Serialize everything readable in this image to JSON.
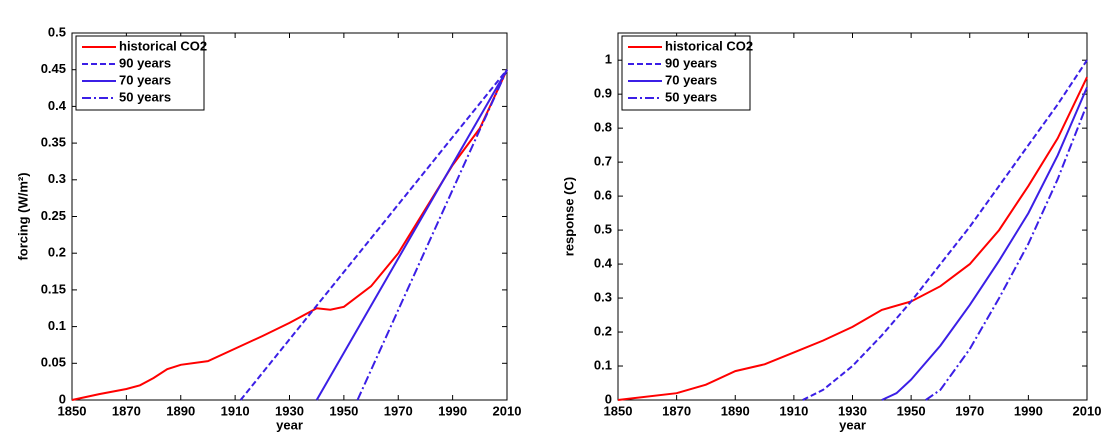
{
  "chart_data": [
    {
      "type": "line",
      "xlabel": "year",
      "ylabel": "forcing (W/m²)",
      "xlim": [
        1850,
        2010
      ],
      "ylim": [
        0,
        0.5
      ],
      "xticks": [
        1850,
        1870,
        1890,
        1910,
        1930,
        1950,
        1970,
        1990,
        2010
      ],
      "yticks": [
        0,
        0.05,
        0.1,
        0.15,
        0.2,
        0.25,
        0.3,
        0.35,
        0.4,
        0.45,
        0.5
      ],
      "legend": "upper left",
      "series": [
        {
          "name": "historical CO2",
          "color": "#ff0000",
          "linestyle": "solid",
          "x": [
            1850,
            1860,
            1870,
            1875,
            1880,
            1885,
            1890,
            1900,
            1910,
            1920,
            1930,
            1940,
            1945,
            1950,
            1960,
            1970,
            1980,
            1990,
            2000,
            2010
          ],
          "values": [
            0,
            0.008,
            0.015,
            0.02,
            0.03,
            0.042,
            0.048,
            0.053,
            0.07,
            0.087,
            0.105,
            0.125,
            0.123,
            0.127,
            0.155,
            0.2,
            0.26,
            0.32,
            0.37,
            0.45
          ]
        },
        {
          "name": "90 years",
          "color": "#3b1fe6",
          "linestyle": "dashed",
          "x": [
            1912,
            2010
          ],
          "values": [
            0,
            0.45
          ]
        },
        {
          "name": "70 years",
          "color": "#3b1fe6",
          "linestyle": "solid",
          "x": [
            1940,
            2010
          ],
          "values": [
            0,
            0.45
          ]
        },
        {
          "name": "50 years",
          "color": "#3b1fe6",
          "linestyle": "dashdot",
          "x": [
            1955,
            2010
          ],
          "values": [
            0,
            0.45
          ]
        }
      ]
    },
    {
      "type": "line",
      "xlabel": "year",
      "ylabel": "response (C)",
      "xlim": [
        1850,
        2010
      ],
      "ylim": [
        0,
        1.08
      ],
      "xticks": [
        1850,
        1870,
        1890,
        1910,
        1930,
        1950,
        1970,
        1990,
        2010
      ],
      "yticks": [
        0,
        0.1,
        0.2,
        0.3,
        0.4,
        0.5,
        0.6,
        0.7,
        0.8,
        0.9,
        1
      ],
      "legend": "upper left",
      "series": [
        {
          "name": "historical CO2",
          "color": "#ff0000",
          "linestyle": "solid",
          "x": [
            1850,
            1870,
            1880,
            1890,
            1900,
            1910,
            1920,
            1930,
            1940,
            1950,
            1960,
            1970,
            1980,
            1990,
            2000,
            2010
          ],
          "values": [
            0,
            0.02,
            0.045,
            0.085,
            0.105,
            0.14,
            0.175,
            0.215,
            0.265,
            0.29,
            0.335,
            0.4,
            0.5,
            0.63,
            0.77,
            0.95
          ]
        },
        {
          "name": "90 years",
          "color": "#3b1fe6",
          "linestyle": "dashed",
          "x": [
            1913,
            1920,
            1930,
            1940,
            1950,
            1960,
            1970,
            1980,
            1990,
            2000,
            2010
          ],
          "values": [
            0,
            0.03,
            0.1,
            0.19,
            0.29,
            0.4,
            0.51,
            0.63,
            0.75,
            0.87,
            1.0
          ]
        },
        {
          "name": "70 years",
          "color": "#3b1fe6",
          "linestyle": "solid",
          "x": [
            1940,
            1945,
            1950,
            1960,
            1970,
            1980,
            1990,
            2000,
            2010
          ],
          "values": [
            0,
            0.02,
            0.06,
            0.16,
            0.28,
            0.41,
            0.55,
            0.72,
            0.92
          ]
        },
        {
          "name": "50 years",
          "color": "#3b1fe6",
          "linestyle": "dashdot",
          "x": [
            1955,
            1960,
            1970,
            1980,
            1990,
            2000,
            2010
          ],
          "values": [
            0,
            0.03,
            0.15,
            0.3,
            0.46,
            0.65,
            0.87
          ]
        }
      ]
    }
  ]
}
